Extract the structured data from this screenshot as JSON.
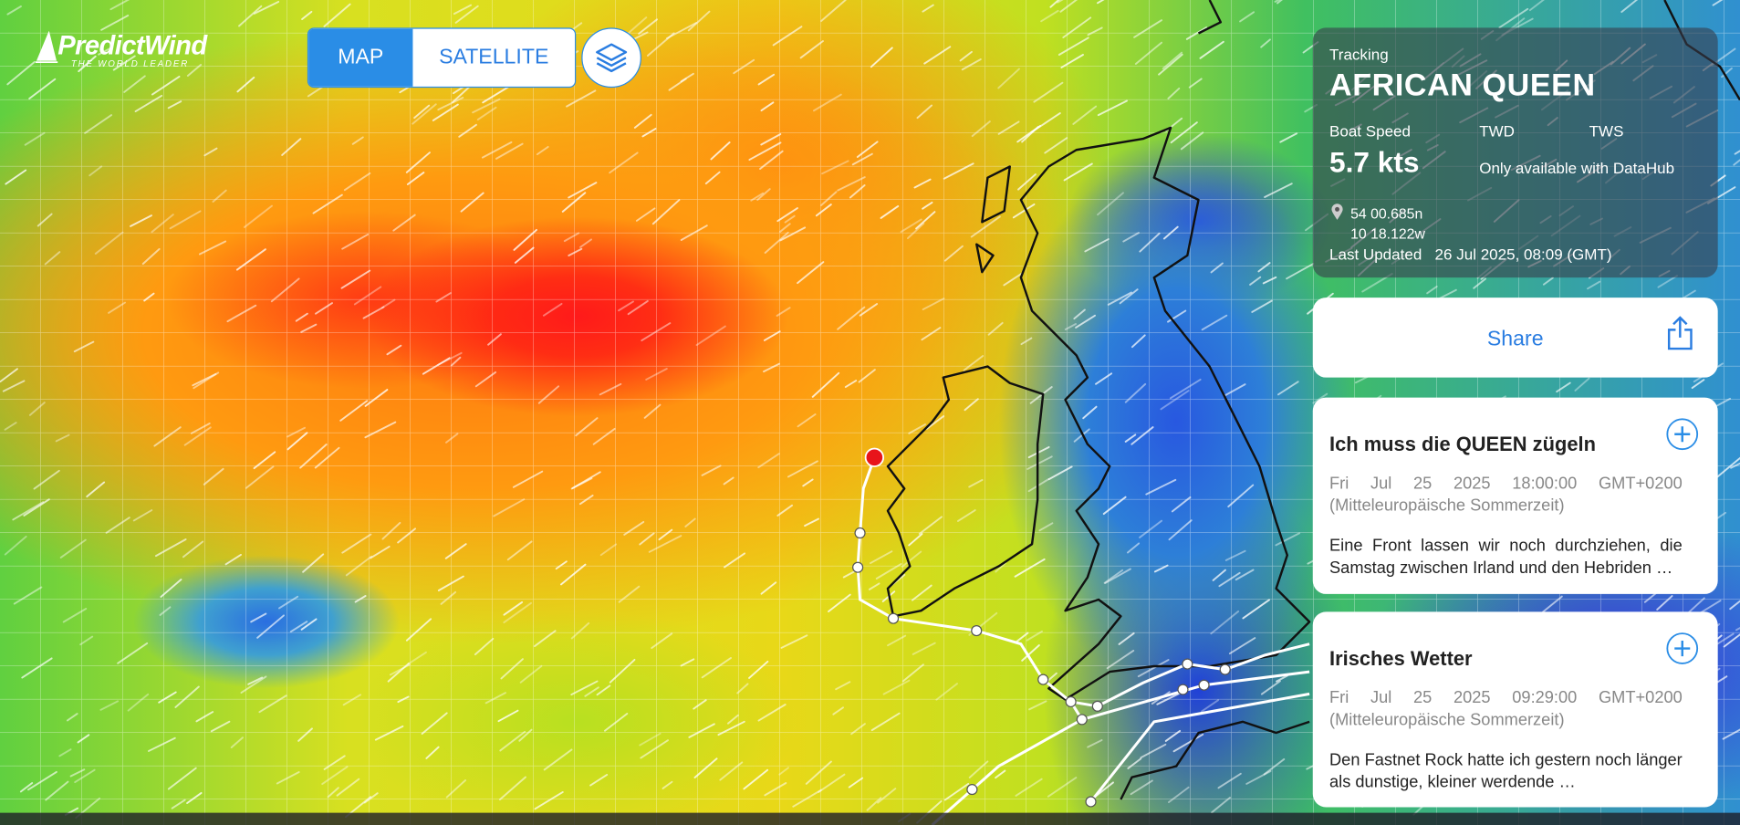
{
  "logo": {
    "name": "PredictWind",
    "tagline": "THE WORLD LEADER"
  },
  "map_toggle": {
    "options": [
      "MAP",
      "SATELLITE"
    ]
  },
  "tracking": {
    "label": "Tracking",
    "boat_name": "AFRICAN QUEEN",
    "boat_speed_label": "Boat Speed",
    "boat_speed": "5.7 kts",
    "twd_label": "TWD",
    "tws_label": "TWS",
    "datahub_note": "Only available with DataHub",
    "latitude": "54 00.685n",
    "longitude": "10 18.122w",
    "last_updated_label": "Last Updated",
    "last_updated": "26 Jul 2025, 08:09 (GMT)"
  },
  "share": {
    "label": "Share"
  },
  "posts": [
    {
      "title": "Ich muss die QUEEN zügeln",
      "date": "Fri Jul 25 2025 18:00:00 GMT+0200 (Mitteleuropäische Sommerzeit)",
      "excerpt": "Eine Front lassen wir noch durchziehen, die Samstag zwischen Irland und den Hebriden …"
    },
    {
      "title": "Irisches Wetter",
      "date": "Fri Jul 25 2025 09:29:00 GMT+0200 (Mitteleuropäische Sommerzeit)",
      "excerpt": "Den Fastnet Rock hatte ich gestern noch länger als dunstige, kleiner werdende …"
    }
  ]
}
